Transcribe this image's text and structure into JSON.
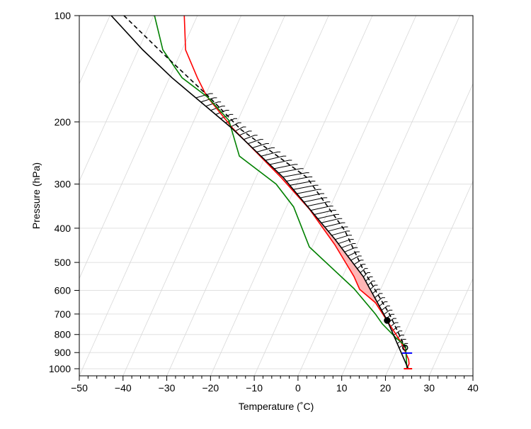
{
  "chart_data": {
    "type": "line",
    "xlabel": "Temperature (˚C)",
    "ylabel": "Pressure (hPa)",
    "xlim": [
      -50,
      40
    ],
    "ylim": [
      1050,
      100
    ],
    "y_scale": "log",
    "skewed_isotherms": true,
    "grid": true,
    "xticks": [
      -50,
      -40,
      -30,
      -20,
      -10,
      0,
      10,
      20,
      30,
      40
    ],
    "xtick_labels": [
      "−50",
      "−40",
      "−30",
      "−20",
      "−10",
      "0",
      "10",
      "20",
      "30",
      "40"
    ],
    "yticks": [
      100,
      200,
      300,
      400,
      500,
      600,
      700,
      800,
      900,
      1000
    ],
    "ytick_labels": [
      "100",
      "200",
      "300",
      "400",
      "500",
      "600",
      "700",
      "800",
      "900",
      "1000"
    ],
    "series": [
      {
        "color": "#ff0000",
        "style": "solid",
        "points": [
          [
            -26,
            100
          ],
          [
            -25.7,
            125
          ],
          [
            -23,
            150
          ],
          [
            -20.9,
            169
          ],
          [
            -15,
            208
          ],
          [
            -3.9,
            287
          ],
          [
            2.6,
            353
          ],
          [
            8.4,
            445
          ],
          [
            12.8,
            548
          ],
          [
            14.1,
            596
          ],
          [
            17.7,
            650
          ],
          [
            19.8,
            713
          ],
          [
            23.6,
            843
          ],
          [
            25.3,
            942
          ],
          [
            25.4,
            968
          ],
          [
            24.9,
            1000
          ]
        ]
      },
      {
        "color": "#008000",
        "style": "solid",
        "points": [
          [
            -32.8,
            100
          ],
          [
            -30.9,
            125
          ],
          [
            -26.5,
            150
          ],
          [
            -20.7,
            170
          ],
          [
            -15.8,
            198
          ],
          [
            -13.4,
            250
          ],
          [
            -5,
            300
          ],
          [
            -1,
            348
          ],
          [
            2.6,
            452
          ],
          [
            12.8,
            593
          ],
          [
            17.7,
            700
          ],
          [
            19.3,
            747
          ],
          [
            22.5,
            820
          ],
          [
            24.6,
            862
          ],
          [
            24.9,
            1000
          ]
        ]
      },
      {
        "color": "#000000",
        "style": "solid",
        "points": [
          [
            -42.7,
            100
          ],
          [
            -35.5,
            125
          ],
          [
            -28.8,
            150
          ],
          [
            -15.2,
            208
          ],
          [
            -3.4,
            287
          ],
          [
            8.4,
            429
          ],
          [
            14.9,
            548
          ],
          [
            20.4,
            730
          ],
          [
            25.2,
            1000
          ]
        ]
      },
      {
        "color": "#000000",
        "style": "dashed",
        "points": [
          [
            -39.8,
            100
          ],
          [
            -30.9,
            128
          ],
          [
            -20.1,
            171
          ],
          [
            -13.1,
            210
          ],
          [
            2.0,
            287
          ],
          [
            10.7,
            406
          ],
          [
            14.9,
            524
          ],
          [
            20.9,
            700
          ],
          [
            23.0,
            794
          ],
          [
            24.5,
            872
          ]
        ]
      }
    ],
    "shaded_regions": [
      {
        "between": [
          0,
          2
        ],
        "pressure_range": [
          208,
          730
        ],
        "color": "#ffb6b6"
      },
      {
        "between": [
          2,
          3
        ],
        "pressure_range": [
          171,
          872
        ],
        "style": "hatched"
      }
    ],
    "markers": [
      {
        "shape": "filled-circle",
        "point": [
          20.4,
          730
        ]
      },
      {
        "shape": "open-circle",
        "point": [
          24.5,
          872
        ]
      }
    ],
    "ticks_marks": [
      {
        "color": "#0000ff",
        "pressure": 903,
        "x_range": [
          23.8,
          26.1
        ]
      },
      {
        "color": "#ff0000",
        "pressure": 1000,
        "x_range": [
          24.2,
          26.1
        ]
      }
    ]
  }
}
